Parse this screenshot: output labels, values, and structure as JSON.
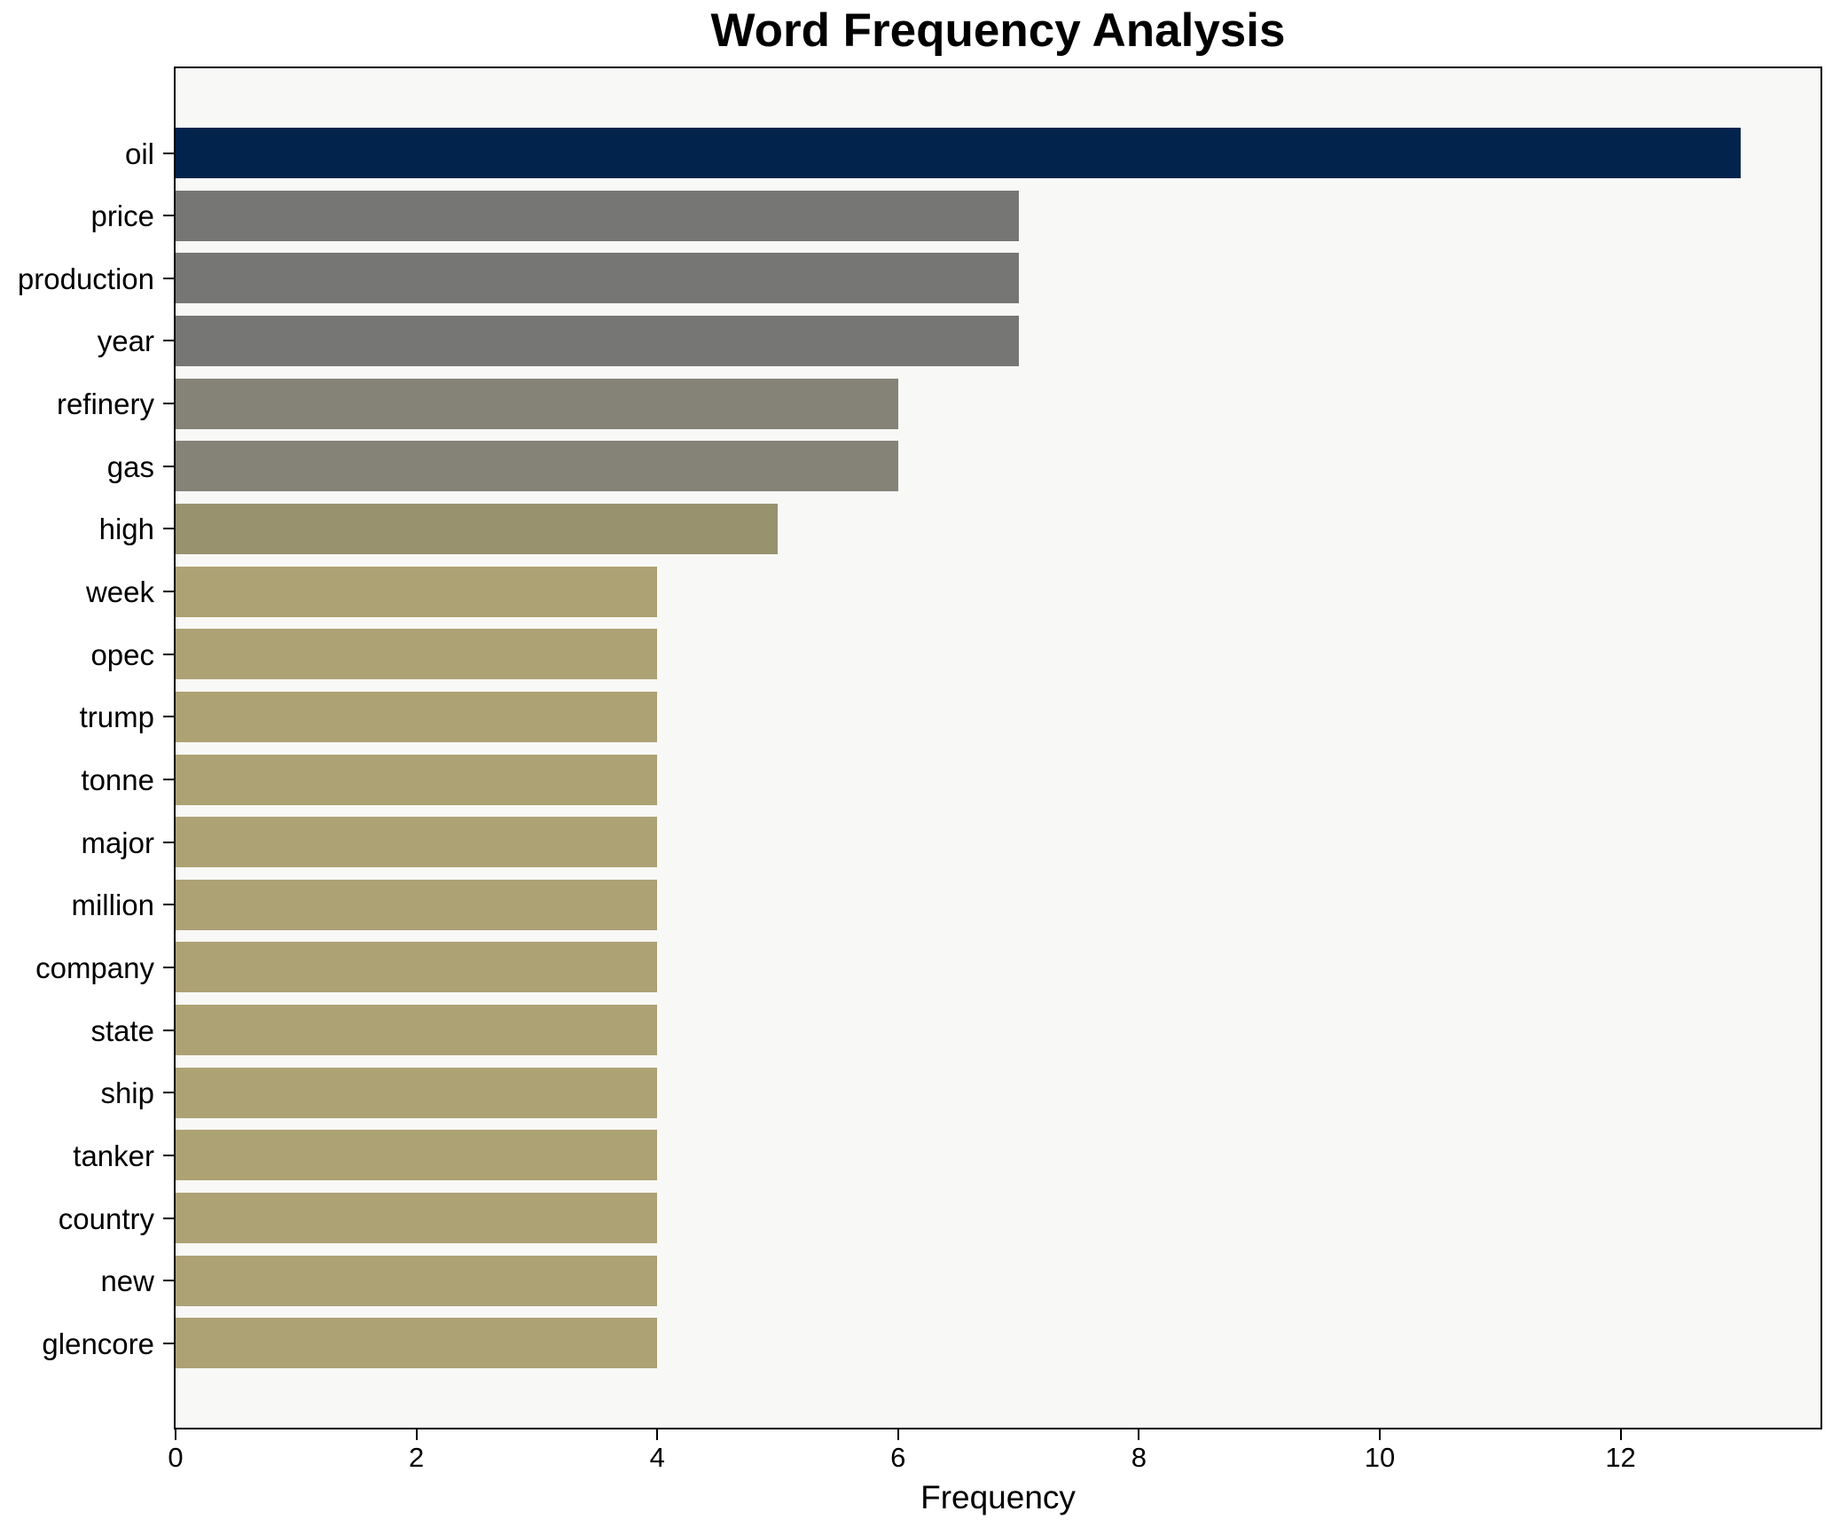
{
  "chart_data": {
    "type": "bar",
    "orientation": "horizontal",
    "title": "Word Frequency Analysis",
    "xlabel": "Frequency",
    "ylabel": "",
    "categories": [
      "oil",
      "price",
      "production",
      "year",
      "refinery",
      "gas",
      "high",
      "week",
      "opec",
      "trump",
      "tonne",
      "major",
      "million",
      "company",
      "state",
      "ship",
      "tanker",
      "country",
      "new",
      "glencore"
    ],
    "values": [
      13,
      7,
      7,
      7,
      6,
      6,
      5,
      4,
      4,
      4,
      4,
      4,
      4,
      4,
      4,
      4,
      4,
      4,
      4,
      4
    ],
    "bar_colors": [
      "#02234c",
      "#767675",
      "#767675",
      "#767675",
      "#858278",
      "#858278",
      "#98926f",
      "#aca274",
      "#aca274",
      "#aca274",
      "#aca274",
      "#aca274",
      "#aca274",
      "#aca274",
      "#aca274",
      "#aca274",
      "#aca274",
      "#aca274",
      "#aca274",
      "#aca274"
    ],
    "xticks": [
      0,
      2,
      4,
      6,
      8,
      10,
      12
    ],
    "xlim": [
      0,
      13.66
    ],
    "grid": false,
    "legend": null,
    "figure_bg": "#ffffff",
    "plot_bg": "#f8f8f6",
    "spine_color": "#000000"
  }
}
